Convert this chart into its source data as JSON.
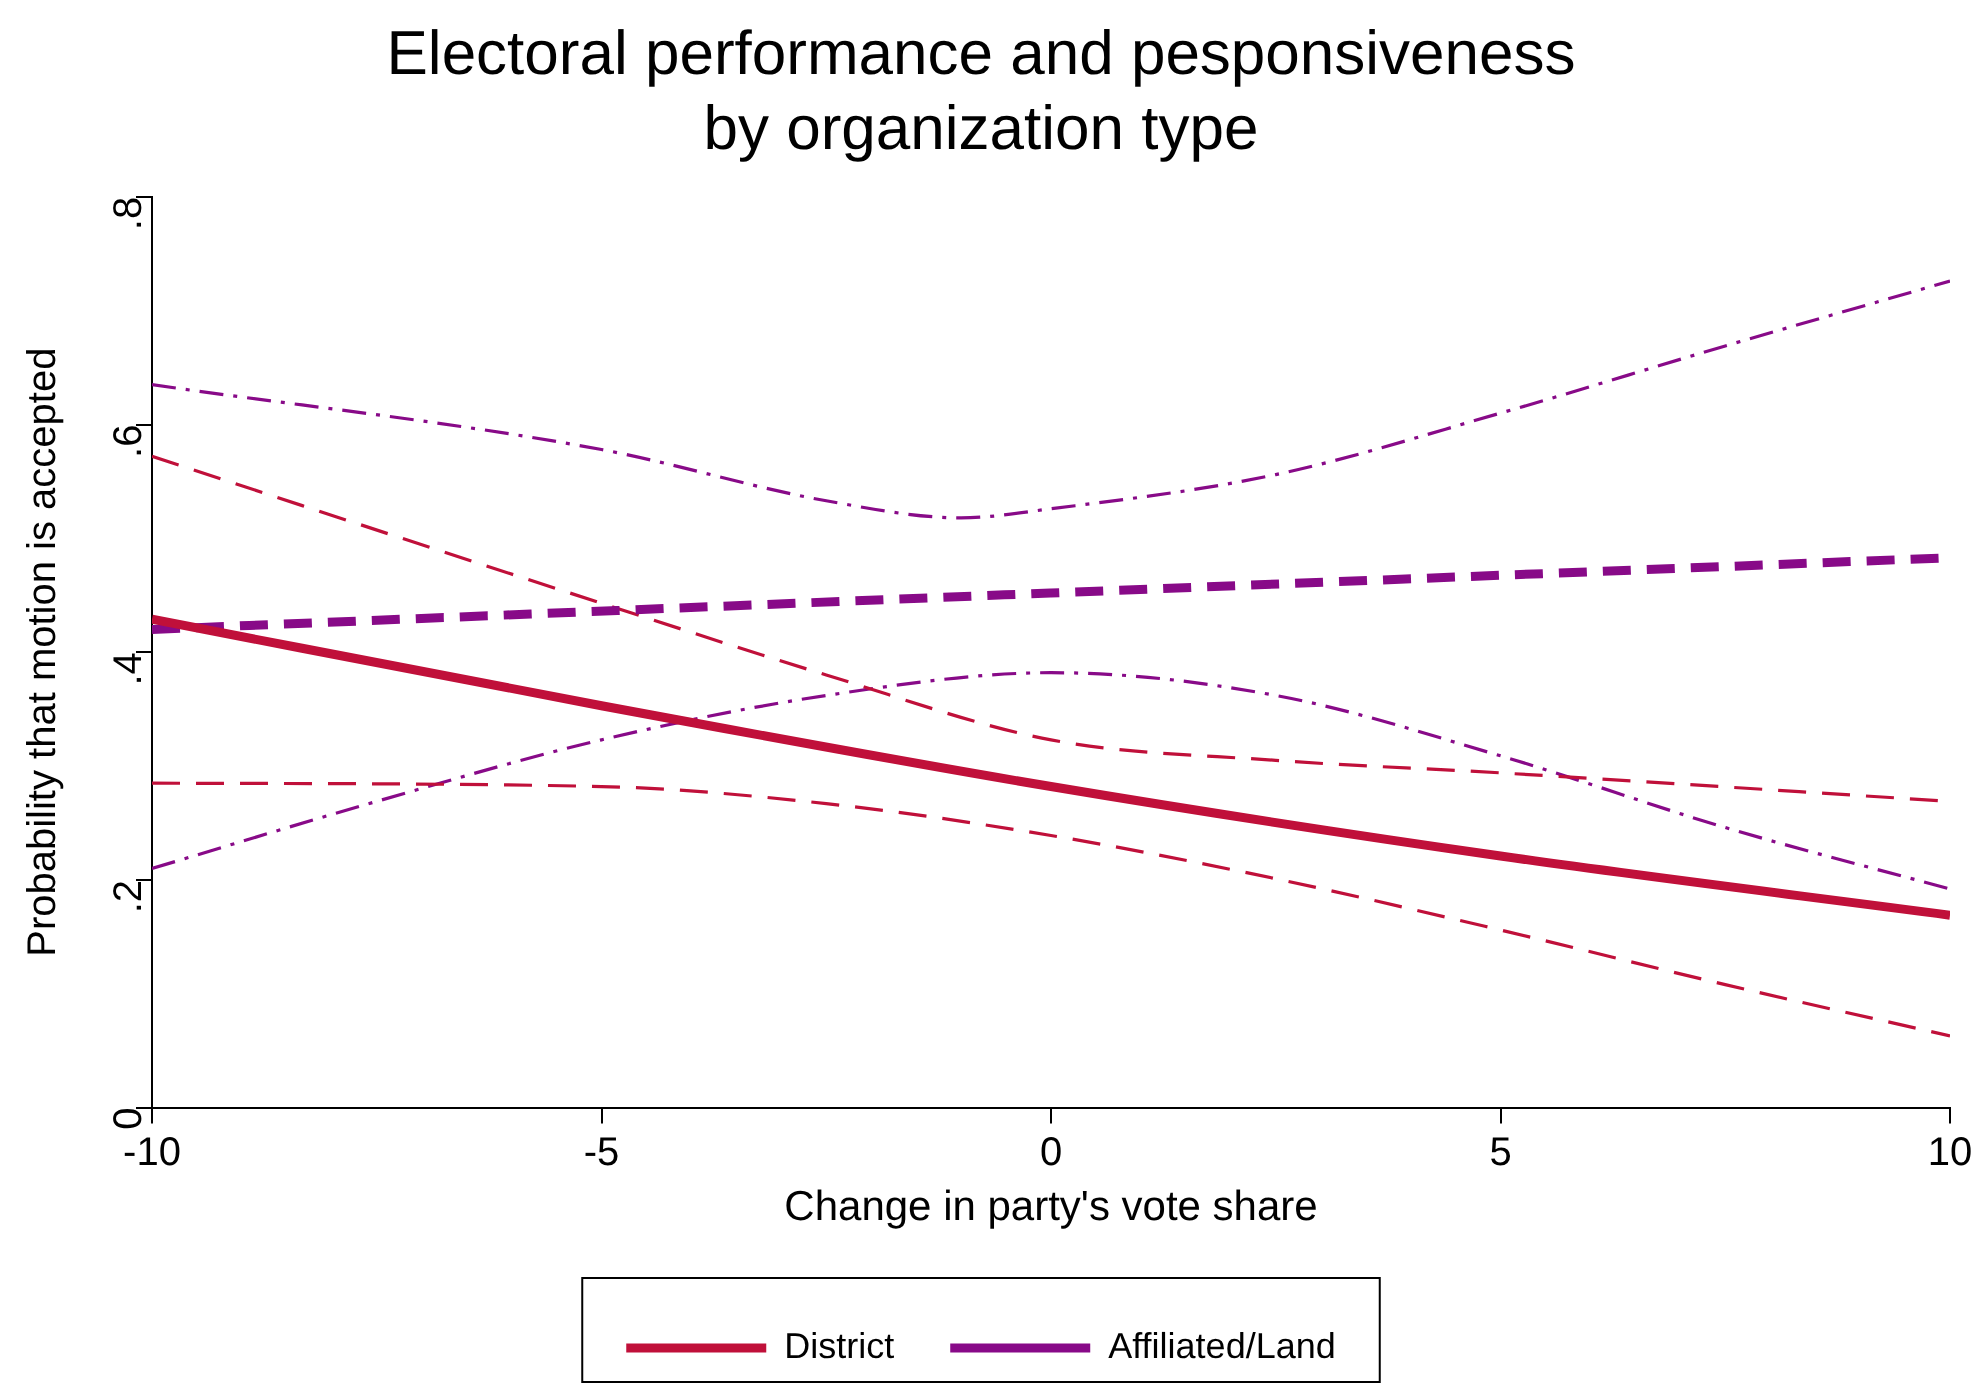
{
  "chart_data": {
    "type": "line",
    "title": "Electoral performance and pesponsiveness\nby organization type",
    "xlabel": "Change in party's vote share",
    "ylabel": "Probability that motion is accepted",
    "xlim": [
      -10,
      10
    ],
    "xticks": [
      -10,
      -5,
      0,
      5,
      10
    ],
    "ylim": [
      0,
      0.8
    ],
    "yticks": [
      {
        "value": 0,
        "label": "0"
      },
      {
        "value": 0.2,
        "label": ".2"
      },
      {
        "value": 0.4,
        "label": ".4"
      },
      {
        "value": 0.6,
        "label": ".6"
      },
      {
        "value": 0.8,
        "label": ".8"
      }
    ],
    "grid": false,
    "legend": "bottom",
    "marker": "none",
    "series": [
      {
        "name": "District",
        "color": "#c0103a",
        "line_style": "solid",
        "x": [
          -10,
          -5,
          0,
          5,
          10
        ],
        "values": [
          0.429,
          0.353,
          0.282,
          0.221,
          0.169
        ]
      },
      {
        "name": "Affiliated/Land",
        "color": "#880a88",
        "line_style": "dashed",
        "x": [
          -10,
          0,
          10
        ],
        "values": [
          0.42,
          0.452,
          0.483
        ]
      },
      {
        "color": "#c0103a",
        "line_style": "dashed",
        "x": [
          -10,
          -5,
          -2.5,
          0,
          2.5,
          5,
          10
        ],
        "values": [
          0.572,
          0.443,
          0.38,
          0.323,
          0.305,
          0.294,
          0.269
        ]
      },
      {
        "color": "#c0103a",
        "line_style": "dashed",
        "x": [
          -10,
          -5,
          -2.5,
          0,
          2.5,
          5,
          7.5,
          10
        ],
        "values": [
          0.285,
          0.282,
          0.267,
          0.239,
          0.201,
          0.156,
          0.108,
          0.063
        ]
      },
      {
        "color": "#880a88",
        "line_style": "dashdot",
        "x": [
          -10,
          -5,
          -2.5,
          -1,
          0,
          2.5,
          5,
          7.5,
          10
        ],
        "values": [
          0.635,
          0.578,
          0.533,
          0.518,
          0.526,
          0.556,
          0.61,
          0.669,
          0.726
        ]
      },
      {
        "color": "#880a88",
        "line_style": "dashdot",
        "x": [
          -10,
          -7.5,
          -5,
          -2.5,
          0,
          2.5,
          5,
          7.5,
          10
        ],
        "values": [
          0.21,
          0.269,
          0.323,
          0.362,
          0.382,
          0.362,
          0.309,
          0.246,
          0.192
        ]
      }
    ]
  }
}
